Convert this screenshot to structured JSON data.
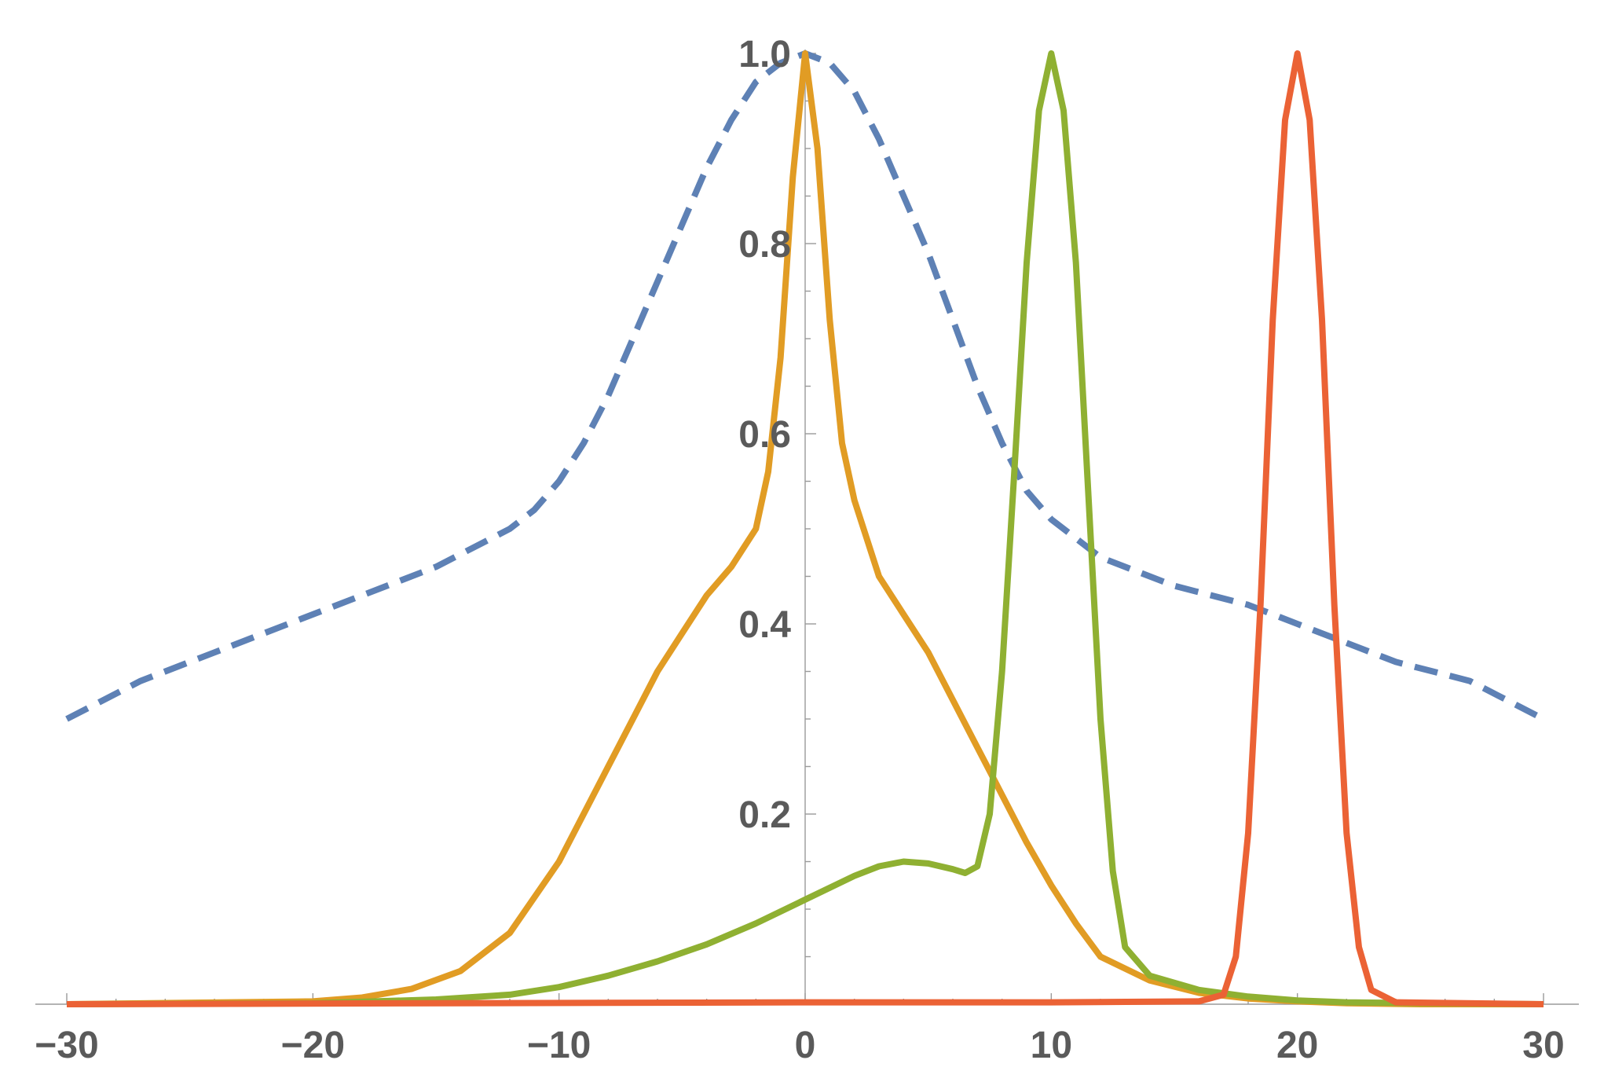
{
  "chart_data": {
    "type": "line",
    "title": "",
    "xlabel": "",
    "ylabel": "",
    "xlim": [
      -30,
      30
    ],
    "ylim": [
      0,
      1.0
    ],
    "grid": false,
    "x_ticks": [
      -30,
      -20,
      -10,
      0,
      10,
      20,
      30
    ],
    "x_tick_labels": [
      "−30",
      "−20",
      "−10",
      "0",
      "10",
      "20",
      "30"
    ],
    "y_ticks": [
      0.2,
      0.4,
      0.6,
      0.8,
      1.0
    ],
    "y_tick_labels": [
      "0.2",
      "0.4",
      "0.6",
      "0.8",
      "1.0"
    ],
    "x_minor_step": 2,
    "y_minor_step": 0.05,
    "series": [
      {
        "color": "#5e81b5",
        "style": "dashed",
        "x": [
          -30,
          -27,
          -24,
          -21,
          -18,
          -15,
          -12,
          -11,
          -10,
          -9,
          -8,
          -7,
          -6,
          -5,
          -4,
          -3,
          -2,
          -1,
          0,
          1,
          2,
          3,
          4,
          5,
          6,
          7,
          8,
          9,
          10,
          11,
          12,
          15,
          18,
          21,
          24,
          27,
          30
        ],
        "y": [
          0.3,
          0.34,
          0.37,
          0.4,
          0.43,
          0.46,
          0.5,
          0.52,
          0.55,
          0.59,
          0.64,
          0.7,
          0.76,
          0.82,
          0.88,
          0.93,
          0.97,
          0.99,
          1.0,
          0.99,
          0.96,
          0.91,
          0.85,
          0.79,
          0.72,
          0.65,
          0.59,
          0.54,
          0.51,
          0.49,
          0.47,
          0.44,
          0.42,
          0.39,
          0.36,
          0.34,
          0.3
        ]
      },
      {
        "color": "#e19c24",
        "style": "solid",
        "x": [
          -30,
          -20,
          -18,
          -16,
          -14,
          -12,
          -10,
          -9,
          -8,
          -7,
          -6,
          -5,
          -4,
          -3,
          -2,
          -1.5,
          -1,
          -0.5,
          0,
          0.5,
          1,
          1.5,
          2,
          3,
          4,
          5,
          6,
          7,
          8,
          9,
          10,
          11,
          12,
          14,
          16,
          18,
          20,
          22,
          25,
          30
        ],
        "y": [
          0,
          0.003,
          0.007,
          0.016,
          0.035,
          0.075,
          0.15,
          0.2,
          0.25,
          0.3,
          0.35,
          0.39,
          0.43,
          0.46,
          0.5,
          0.56,
          0.68,
          0.87,
          1.0,
          0.9,
          0.72,
          0.59,
          0.53,
          0.45,
          0.41,
          0.37,
          0.32,
          0.27,
          0.22,
          0.17,
          0.125,
          0.085,
          0.05,
          0.025,
          0.012,
          0.006,
          0.003,
          0.001,
          0,
          0
        ]
      },
      {
        "color": "#8fb032",
        "style": "solid",
        "x": [
          -30,
          -20,
          -15,
          -12,
          -10,
          -8,
          -6,
          -4,
          -2,
          0,
          2,
          3,
          4,
          5,
          6,
          6.5,
          7,
          7.5,
          8,
          8.5,
          9,
          9.5,
          10,
          10.5,
          11,
          11.5,
          12,
          12.5,
          13,
          14,
          16,
          18,
          20,
          22,
          25,
          30
        ],
        "y": [
          0,
          0.001,
          0.005,
          0.01,
          0.018,
          0.03,
          0.045,
          0.063,
          0.085,
          0.11,
          0.135,
          0.145,
          0.15,
          0.148,
          0.142,
          0.138,
          0.145,
          0.2,
          0.35,
          0.56,
          0.78,
          0.94,
          1.0,
          0.94,
          0.78,
          0.54,
          0.3,
          0.14,
          0.06,
          0.03,
          0.015,
          0.008,
          0.004,
          0.002,
          0.001,
          0
        ]
      },
      {
        "color": "#eb6235",
        "style": "solid",
        "x": [
          -30,
          0,
          10,
          16,
          17,
          17.5,
          18,
          18.5,
          19,
          19.5,
          20,
          20.5,
          21,
          21.5,
          22,
          22.5,
          23,
          24,
          30
        ],
        "y": [
          0,
          0.002,
          0.002,
          0.003,
          0.01,
          0.05,
          0.18,
          0.42,
          0.72,
          0.93,
          1.0,
          0.93,
          0.72,
          0.42,
          0.18,
          0.06,
          0.015,
          0.002,
          0
        ]
      }
    ]
  }
}
